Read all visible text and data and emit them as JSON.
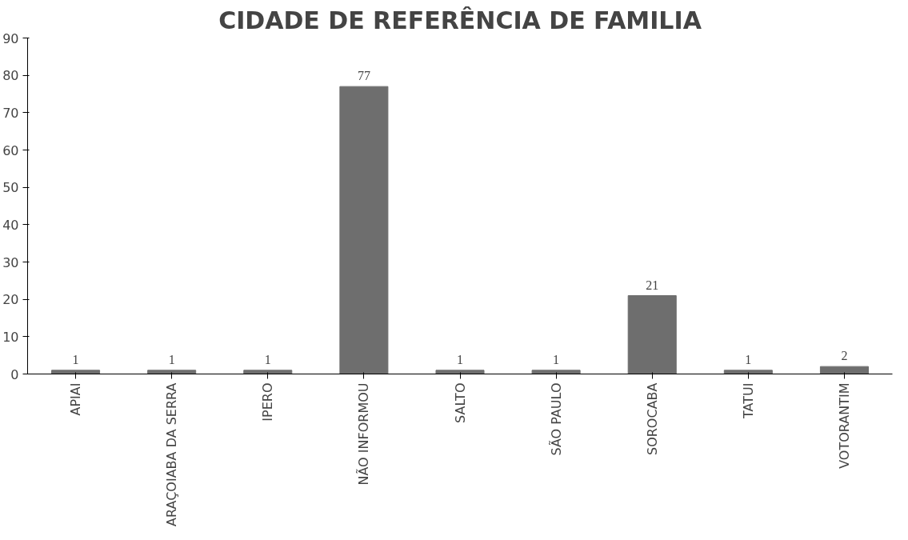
{
  "chart_data": {
    "type": "bar",
    "title": "CIDADE DE REFERÊNCIA DE FAMILIA",
    "categories": [
      "APIAI",
      "ARAÇOIABA DA SERRA",
      "IPERO",
      "NÃO INFORMOU",
      "SALTO",
      "SÃO PAULO",
      "SOROCABA",
      "TATUI",
      "VOTORANTIM"
    ],
    "values": [
      1,
      1,
      1,
      77,
      1,
      1,
      21,
      1,
      2
    ],
    "color": "#6e6e6e",
    "ylim": [
      0,
      90
    ],
    "yticks": [
      0,
      10,
      20,
      30,
      40,
      50,
      60,
      70,
      80,
      90
    ],
    "grid": false,
    "data_labels": true
  }
}
